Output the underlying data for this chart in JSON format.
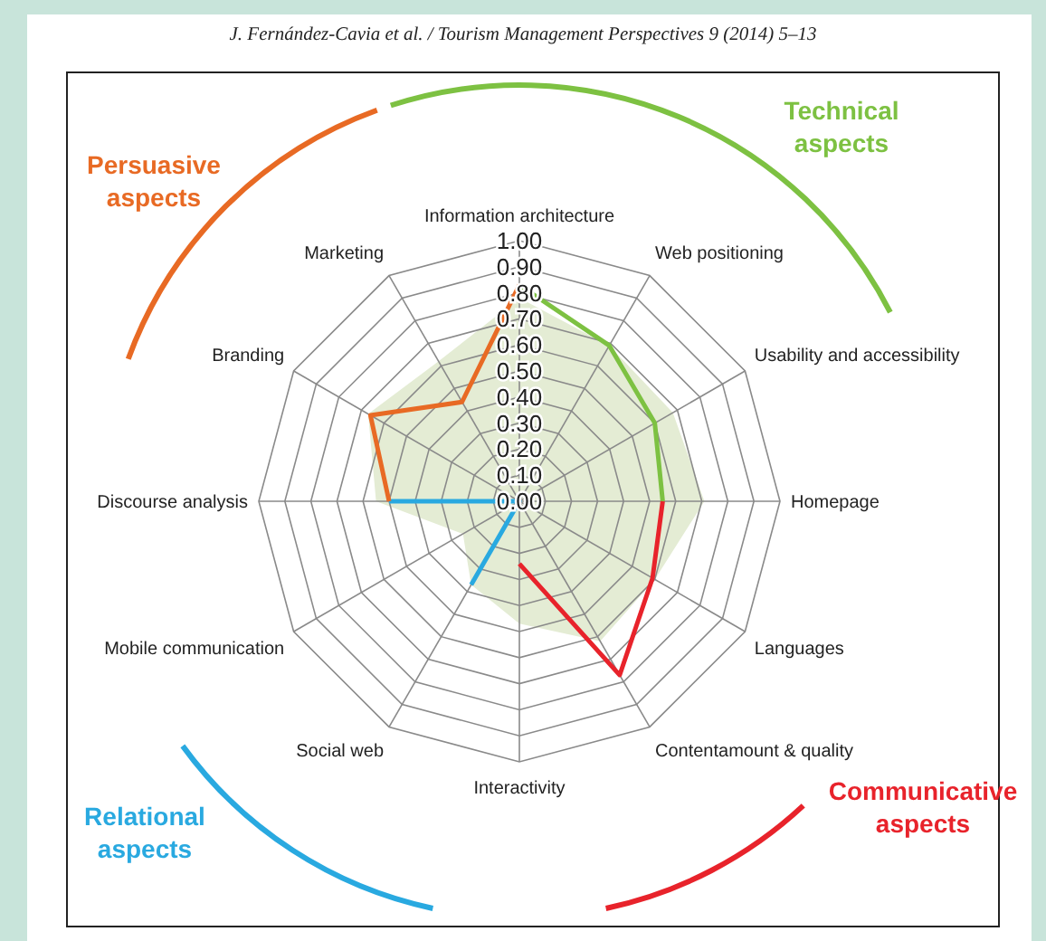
{
  "chart_data": {
    "type": "radar",
    "categories": [
      "Information architecture",
      "Web positioning",
      "Usability and accessibility",
      "Homepage",
      "Languages",
      "Contentamount & quality",
      "Interactivity",
      "Social web",
      "Mobile communication",
      "Discourse analysis",
      "Branding",
      "Marketing"
    ],
    "series": [
      {
        "type": "area",
        "color": "#e4ecd4",
        "values": [
          0.78,
          0.69,
          0.68,
          0.71,
          0.6,
          0.62,
          0.47,
          0.37,
          0.25,
          0.55,
          0.67,
          0.62
        ]
      },
      {
        "name": "Technical aspects",
        "color": "#7dc142",
        "values": [
          0.83,
          0.69,
          0.6,
          0.55,
          null,
          null,
          null,
          null,
          null,
          null,
          null,
          null
        ]
      },
      {
        "name": "Communicative aspects",
        "color": "#e8232b",
        "values": [
          null,
          null,
          null,
          0.55,
          0.59,
          0.77,
          0.24,
          null,
          null,
          null,
          null,
          null
        ]
      },
      {
        "name": "Relational aspects",
        "color": "#29a9e0",
        "values": [
          null,
          null,
          null,
          null,
          null,
          null,
          null,
          0.37,
          0,
          0.5,
          null,
          null
        ]
      },
      {
        "name": "Persuasive aspects",
        "color": "#e86a24",
        "values": [
          0.83,
          null,
          null,
          null,
          null,
          null,
          null,
          null,
          null,
          0.5,
          0.66,
          0.44
        ]
      }
    ],
    "ylim": [
      0,
      1
    ],
    "yticks": [
      {
        "value": 0,
        "label": "0.00"
      },
      {
        "value": 0.1,
        "label": "0.10"
      },
      {
        "value": 0.2,
        "label": "0.20"
      },
      {
        "value": 0.3,
        "label": "0.30"
      },
      {
        "value": 0.4,
        "label": "0.40"
      },
      {
        "value": 0.5,
        "label": "0.50"
      },
      {
        "value": 0.6,
        "label": "0.60"
      },
      {
        "value": 0.7,
        "label": "0.70"
      },
      {
        "value": 0.8,
        "label": "0.80"
      },
      {
        "value": 0.9,
        "label": "0.90"
      },
      {
        "value": 1,
        "label": "1.00"
      }
    ],
    "grid": true,
    "annotations": [
      "J. Fernández-Cavia et al. / Tourism Management Perspectives 9 (2014) 5–13"
    ]
  }
}
